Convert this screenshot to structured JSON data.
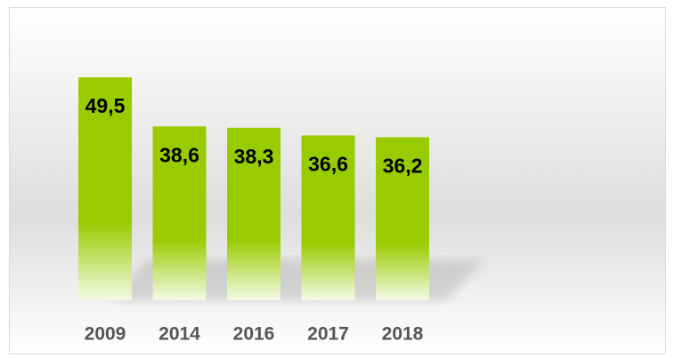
{
  "chart_data": {
    "type": "bar",
    "categories": [
      "2009",
      "2014",
      "2016",
      "2017",
      "2018"
    ],
    "values": [
      49.5,
      38.6,
      38.3,
      36.6,
      36.2
    ],
    "value_labels": [
      "49,5",
      "38,6",
      "38,3",
      "36,6",
      "36,2"
    ],
    "color": "#99cc00"
  }
}
